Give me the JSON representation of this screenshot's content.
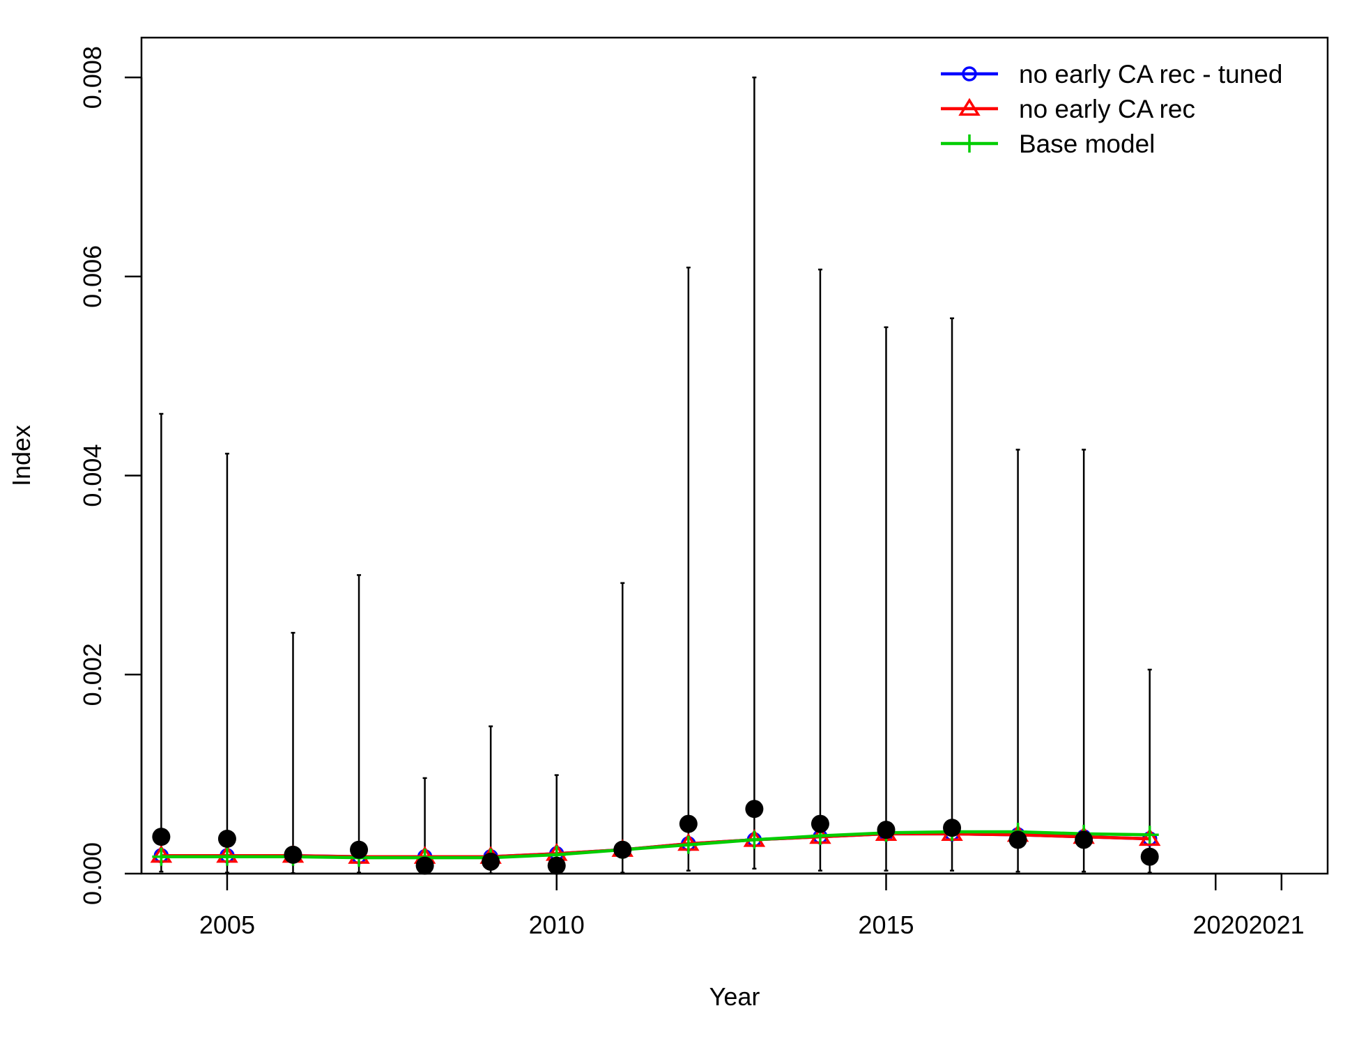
{
  "chart_data": {
    "type": "line",
    "xlabel": "Year",
    "ylabel": "Index",
    "xlim": [
      2003.7,
      2021.7
    ],
    "ylim": [
      0,
      0.0084
    ],
    "x_ticks": [
      2005,
      2010,
      2015,
      2020,
      2021
    ],
    "x_tick_labels": [
      "2005",
      "2010",
      "2015",
      "2020",
      "2021"
    ],
    "y_ticks": [
      0,
      0.002,
      0.004,
      0.006,
      0.008
    ],
    "y_tick_labels": [
      "0.000",
      "0.002",
      "0.004",
      "0.006",
      "0.008"
    ],
    "grid": false,
    "legend": {
      "position": "top-right",
      "entries": [
        {
          "label": "no early CA rec - tuned",
          "color": "#0000FF",
          "marker": "circle"
        },
        {
          "label": "no early CA rec",
          "color": "#FF0000",
          "marker": "triangle"
        },
        {
          "label": "Base model",
          "color": "#00CD00",
          "marker": "plus"
        }
      ]
    },
    "observed": {
      "color": "#000000",
      "x": [
        2004,
        2005,
        2006,
        2007,
        2008,
        2009,
        2010,
        2011,
        2012,
        2013,
        2014,
        2015,
        2016,
        2017,
        2018,
        2019
      ],
      "values": [
        0.00037,
        0.00035,
        0.00019,
        0.00024,
        8e-05,
        0.00012,
        8e-05,
        0.00024,
        0.0005,
        0.00065,
        0.0005,
        0.00044,
        0.00046,
        0.00034,
        0.00034,
        0.00017
      ],
      "upper": [
        0.00462,
        0.00422,
        0.00242,
        0.003,
        0.00096,
        0.00148,
        0.00099,
        0.00292,
        0.00609,
        0.008,
        0.00607,
        0.00549,
        0.00558,
        0.00426,
        0.00426,
        0.00205
      ],
      "lower": [
        2e-05,
        1e-05,
        5e-06,
        1e-05,
        2e-06,
        3e-06,
        2e-06,
        1e-05,
        3e-05,
        5e-05,
        3e-05,
        3e-05,
        3e-05,
        2e-05,
        2e-05,
        1e-05
      ]
    },
    "series": [
      {
        "name": "no early CA rec - tuned",
        "color": "#0000FF",
        "marker": "circle",
        "x": [
          2004,
          2005,
          2006,
          2007,
          2008,
          2009,
          2010,
          2011,
          2012,
          2013,
          2014,
          2015,
          2016,
          2017,
          2018,
          2019
        ],
        "values": [
          0.00018,
          0.00018,
          0.00018,
          0.00017,
          0.00017,
          0.00017,
          0.0002,
          0.00024,
          0.0003,
          0.00034,
          0.00037,
          0.0004,
          0.0004,
          0.00039,
          0.00037,
          0.00035
        ]
      },
      {
        "name": "no early CA rec",
        "color": "#FF0000",
        "marker": "triangle",
        "x": [
          2004,
          2005,
          2006,
          2007,
          2008,
          2009,
          2010,
          2011,
          2012,
          2013,
          2014,
          2015,
          2016,
          2017,
          2018,
          2019
        ],
        "values": [
          0.00018,
          0.00018,
          0.00018,
          0.00017,
          0.00017,
          0.00017,
          0.0002,
          0.00024,
          0.0003,
          0.00034,
          0.00037,
          0.0004,
          0.0004,
          0.00039,
          0.00037,
          0.00035
        ]
      },
      {
        "name": "Base model",
        "color": "#00CD00",
        "marker": "plus",
        "x": [
          2004,
          2005,
          2006,
          2007,
          2008,
          2009,
          2010,
          2011,
          2012,
          2013,
          2014,
          2015,
          2016,
          2017,
          2018,
          2019
        ],
        "values": [
          0.00017,
          0.00017,
          0.00017,
          0.00016,
          0.00016,
          0.00016,
          0.00019,
          0.00024,
          0.00029,
          0.00034,
          0.00038,
          0.00041,
          0.00042,
          0.00042,
          0.0004,
          0.00039
        ]
      }
    ]
  }
}
